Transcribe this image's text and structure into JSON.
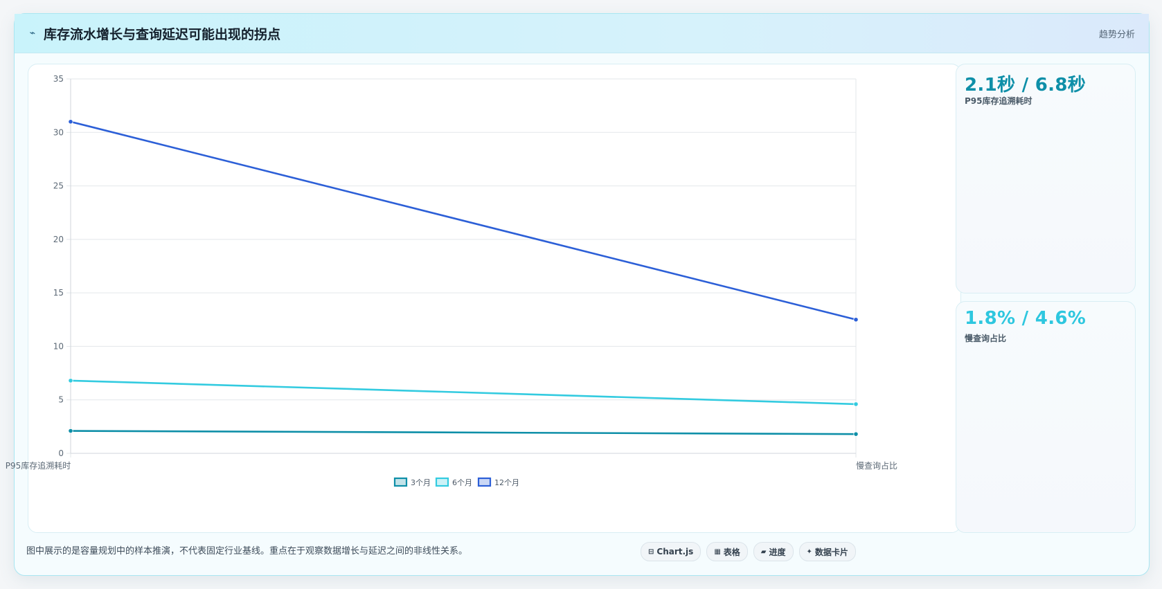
{
  "header": {
    "title": "库存流水增长与查询延迟可能出现的拐点",
    "tag": "趋势分析"
  },
  "chart_data": {
    "type": "line",
    "categories": [
      "P95库存追溯耗时",
      "慢查询占比"
    ],
    "series": [
      {
        "name": "3个月",
        "values": [
          2.1,
          1.8
        ],
        "color": "#0e8fa8"
      },
      {
        "name": "6个月",
        "values": [
          6.8,
          4.6
        ],
        "color": "#33cbe0"
      },
      {
        "name": "12个月",
        "values": [
          31,
          12.5
        ],
        "color": "#2c5fd7"
      }
    ],
    "ylim": [
      0,
      35
    ],
    "yticks": [
      "0",
      "5",
      "10",
      "15",
      "20",
      "25",
      "30",
      "35"
    ],
    "grid": true,
    "legend": "bottom"
  },
  "stats": [
    {
      "value": "2.1秒 / 6.8秒",
      "label": "P95库存追溯耗时"
    },
    {
      "value": "1.8% / 4.6%",
      "label": "慢查询占比"
    }
  ],
  "footer": {
    "note": "图中展示的是容量规划中的样本推演，不代表固定行业基线。重点在于观察数据增长与延迟之间的非线性关系。",
    "chips": [
      {
        "icon": "chart-icon",
        "glyph": "⊟",
        "label": "Chart.js"
      },
      {
        "icon": "table-icon",
        "glyph": "▦",
        "label": "表格"
      },
      {
        "icon": "progress-icon",
        "glyph": "▰",
        "label": "进度"
      },
      {
        "icon": "sparkle-icon",
        "glyph": "✦",
        "label": "数据卡片"
      }
    ]
  }
}
